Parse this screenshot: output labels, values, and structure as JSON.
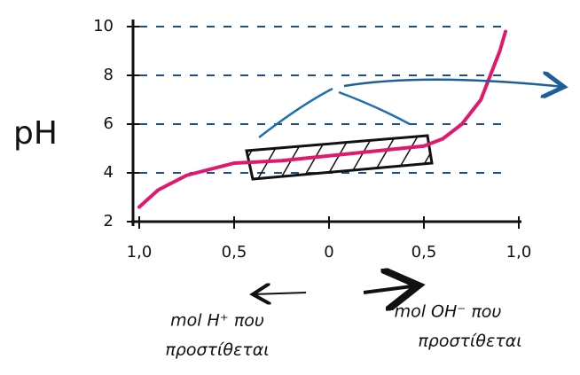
{
  "chart_data": {
    "type": "line",
    "y_label": "pH",
    "x": [
      -1,
      -0.9,
      -0.75,
      -0.5,
      -0.25,
      0,
      0.25,
      0.5,
      0.6,
      0.7,
      0.8,
      0.85,
      0.9,
      0.93
    ],
    "series": [
      {
        "color": "#e0186e",
        "values": [
          2.6,
          3.3,
          3.9,
          4.4,
          4.5,
          4.7,
          4.9,
          5.1,
          5.4,
          6.0,
          7.0,
          8.0,
          9.0,
          9.8
        ]
      }
    ],
    "xlim": [
      -1,
      1
    ],
    "xticks": [
      {
        "value": -1,
        "label": "1,0"
      },
      {
        "value": -0.5,
        "label": "0,5"
      },
      0,
      {
        "value": 0.5,
        "label": "0,5"
      },
      {
        "value": 1,
        "label": "1,0"
      }
    ],
    "ylim": [
      2,
      10
    ],
    "yticks": [
      2,
      4,
      6,
      8,
      10
    ],
    "grid": true,
    "annotations": [
      "mol H⁺ που",
      "προστίθεται",
      "mol OH⁻ που",
      "προστίθεται"
    ]
  }
}
